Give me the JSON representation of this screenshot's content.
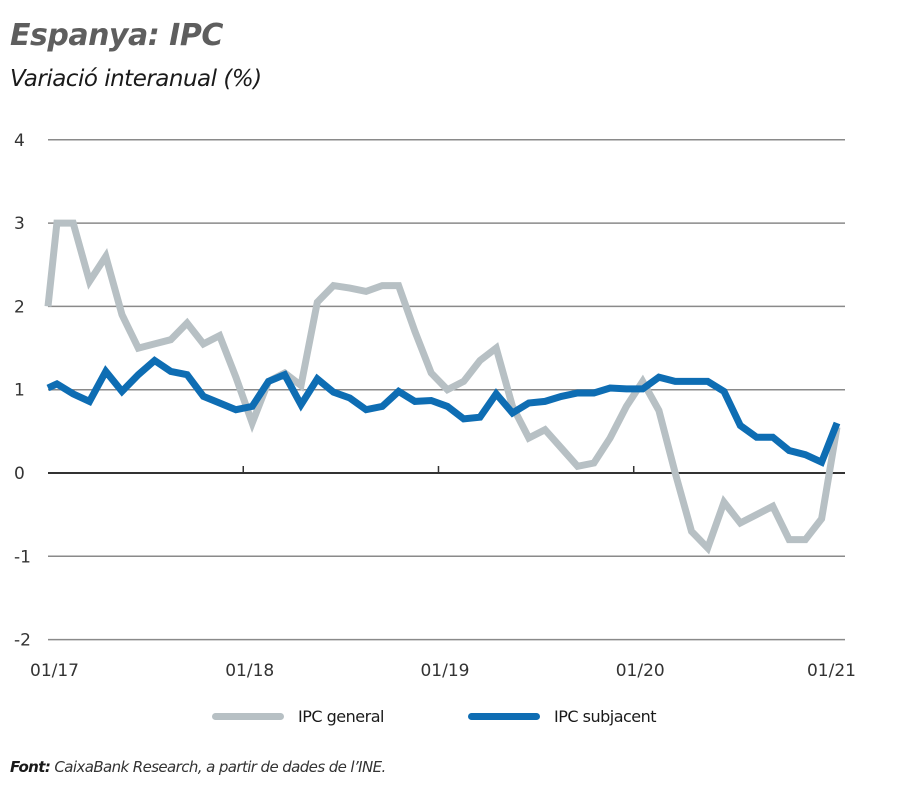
{
  "chart_data": {
    "type": "line",
    "title": "Espanya: IPC",
    "subtitle": "Variació interanual (%)",
    "xlabel": "",
    "ylabel": "",
    "ylim": [
      -2,
      4
    ],
    "yticks": [
      4,
      3,
      2,
      1,
      0,
      -1,
      -2
    ],
    "xlim_months_from_jan17": [
      0,
      48.5
    ],
    "xticks": [
      {
        "label": "01/17",
        "month": 0
      },
      {
        "label": "01/18",
        "month": 12
      },
      {
        "label": "01/19",
        "month": 24
      },
      {
        "label": "01/20",
        "month": 36
      },
      {
        "label": "01/21",
        "month": 48
      }
    ],
    "grid": true,
    "legend_position": "bottom-center",
    "series": [
      {
        "name": "IPC general",
        "color": "#b7c0c4",
        "x_start_month": -0.5,
        "values": [
          2.0,
          3.0,
          3.0,
          2.3,
          2.6,
          1.9,
          1.5,
          1.55,
          1.6,
          1.8,
          1.55,
          1.65,
          1.15,
          0.6,
          1.1,
          1.2,
          1.05,
          2.05,
          2.25,
          2.22,
          2.18,
          2.25,
          2.25,
          1.7,
          1.2,
          1.0,
          1.1,
          1.35,
          1.5,
          0.8,
          0.42,
          0.52,
          0.3,
          0.08,
          0.12,
          0.42,
          0.8,
          1.1,
          0.75,
          0.0,
          -0.7,
          -0.9,
          -0.35,
          -0.6,
          -0.5,
          -0.4,
          -0.8,
          -0.8,
          -0.55,
          0.55
        ]
      },
      {
        "name": "IPC subjacent",
        "color": "#0e6db3",
        "x_start_month": -0.5,
        "values": [
          1.02,
          1.07,
          0.95,
          0.86,
          1.22,
          0.98,
          1.18,
          1.35,
          1.22,
          1.18,
          0.92,
          0.84,
          0.76,
          0.8,
          1.1,
          1.18,
          0.82,
          1.13,
          0.97,
          0.9,
          0.76,
          0.8,
          0.98,
          0.86,
          0.87,
          0.8,
          0.65,
          0.67,
          0.95,
          0.72,
          0.84,
          0.86,
          0.92,
          0.96,
          0.96,
          1.02,
          1.01,
          1.01,
          1.15,
          1.1,
          1.1,
          1.1,
          0.98,
          0.57,
          0.43,
          0.43,
          0.27,
          0.22,
          0.13,
          0.6
        ]
      }
    ]
  },
  "legend": {
    "items": [
      {
        "label": "IPC general",
        "color": "#b7c0c4"
      },
      {
        "label": "IPC subjacent",
        "color": "#0e6db3"
      }
    ]
  },
  "source": {
    "prefix": "Font:",
    "text": " CaixaBank Research, a partir de dades de l’INE."
  }
}
